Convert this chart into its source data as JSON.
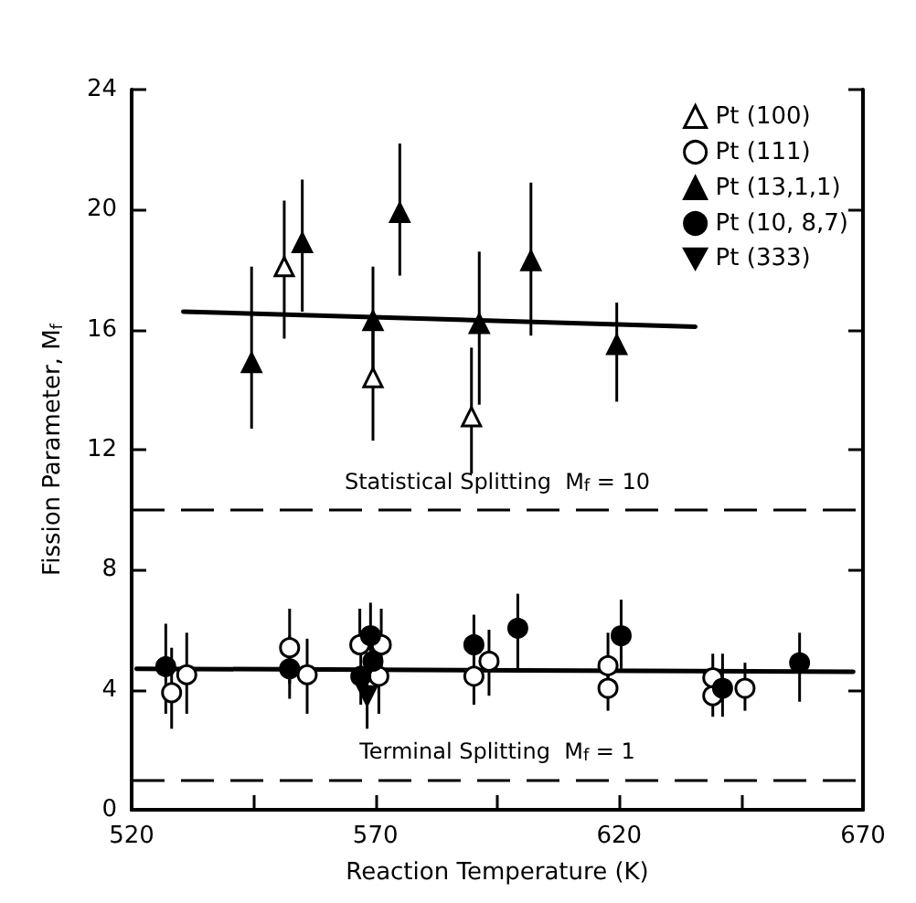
{
  "chart_data": {
    "type": "scatter",
    "xlabel": "Reaction Temperature (K)",
    "ylabel": "Fission Parameter, M$_{f}$",
    "xlim": [
      520,
      670
    ],
    "xticks": [
      520,
      {
        "value": 545,
        "label": null
      },
      570,
      {
        "value": 595,
        "label": null
      },
      620,
      {
        "value": 645,
        "label": null
      },
      670
    ],
    "ylim": [
      0,
      24
    ],
    "yticks": [
      0,
      4,
      8,
      12,
      16,
      20,
      24
    ],
    "grid": false,
    "legend": "top right",
    "series": [
      {
        "name": "Pt (100)",
        "color": "#000000",
        "marker": "triangle-open",
        "x": [
          551.3,
          569.5,
          589.7
        ],
        "values": [
          18.1,
          14.4,
          13.1
        ],
        "errors": [
          [
            15.7,
            20.3
          ],
          [
            12.3,
            16.3
          ],
          [
            11.2,
            15.4
          ]
        ]
      },
      {
        "name": "Pt (111)",
        "color": "#000000",
        "marker": "circle-open",
        "x": [
          531.3,
          528.2,
          552.4,
          556,
          566.8,
          571.2,
          570.7,
          590.2,
          593.3,
          617.7,
          617.7,
          639.2,
          639.2,
          645.8
        ],
        "values": [
          4.5,
          3.9,
          5.4,
          4.5,
          5.5,
          5.5,
          4.45,
          4.45,
          4.95,
          4.8,
          4.05,
          4.4,
          3.8,
          4.05
        ],
        "errors": [
          [
            3.2,
            5.9
          ],
          [
            2.7,
            5.4
          ],
          [
            4.2,
            6.7
          ],
          [
            3.2,
            5.7
          ],
          [
            5.5,
            6.7
          ],
          [
            4.4,
            6.7
          ],
          [
            3.2,
            5.6
          ],
          [
            3.5,
            4.45
          ],
          [
            3.8,
            6.0
          ],
          [
            4.2,
            5.9
          ],
          [
            3.3,
            4.8
          ],
          [
            3.6,
            5.2
          ],
          [
            3.1,
            4.5
          ],
          [
            3.3,
            4.9
          ]
        ]
      },
      {
        "name": "Pt (13,1,1)",
        "color": "#000000",
        "marker": "triangle",
        "x": [
          544.6,
          555,
          569.5,
          575,
          591.3,
          601.9,
          619.5
        ],
        "values": [
          14.9,
          18.9,
          16.3,
          19.9,
          16.2,
          18.3,
          15.5
        ],
        "errors": [
          [
            12.7,
            18.1
          ],
          [
            16.6,
            21.0
          ],
          [
            14.5,
            18.1
          ],
          [
            17.8,
            22.2
          ],
          [
            13.5,
            18.6
          ],
          [
            15.8,
            20.9
          ],
          [
            13.6,
            16.9
          ]
        ]
      },
      {
        "name": "Pt (10, 8,7)",
        "color": "#000000",
        "marker": "circle",
        "x": [
          527,
          552.4,
          569,
          569.5,
          567,
          590.2,
          599.2,
          620.4,
          641.2,
          657
        ],
        "values": [
          4.77,
          4.7,
          5.8,
          4.95,
          4.45,
          5.5,
          6.05,
          5.8,
          4.05,
          4.9
        ],
        "errors": [
          [
            3.2,
            6.2
          ],
          [
            3.7,
            5.8
          ],
          [
            4.8,
            6.9
          ],
          [
            4.2,
            5.9
          ],
          [
            3.5,
            5.4
          ],
          [
            4.5,
            6.5
          ],
          [
            4.7,
            7.2
          ],
          [
            4.7,
            7.0
          ],
          [
            3.1,
            5.2
          ],
          [
            3.6,
            5.9
          ]
        ]
      },
      {
        "name": "Pt (333)",
        "color": "#000000",
        "marker": "triangle-down",
        "x": [
          568.3
        ],
        "values": [
          3.8
        ],
        "errors": [
          [
            2.7,
            5.0
          ]
        ]
      },
      {
        "type": "line",
        "color": "#000000",
        "marker": "none",
        "line_style": "solid",
        "x": [
          530.6,
          635.6
        ],
        "values": [
          16.6,
          16.1
        ]
      },
      {
        "type": "line",
        "color": "#000000",
        "marker": "none",
        "line_style": "solid",
        "x": [
          521,
          668
        ],
        "values": [
          4.7,
          4.6
        ]
      }
    ],
    "ref_lines": [
      {
        "axis": "y",
        "value": 10,
        "label": "Statistical Splitting  M$_{f}$ = 10",
        "color": "#000000",
        "line_style": "dashed"
      },
      {
        "axis": "y",
        "value": 1,
        "label": "Terminal Splitting  M$_{f}$ = 1",
        "color": "#000000",
        "line_style": "dashed"
      }
    ]
  }
}
